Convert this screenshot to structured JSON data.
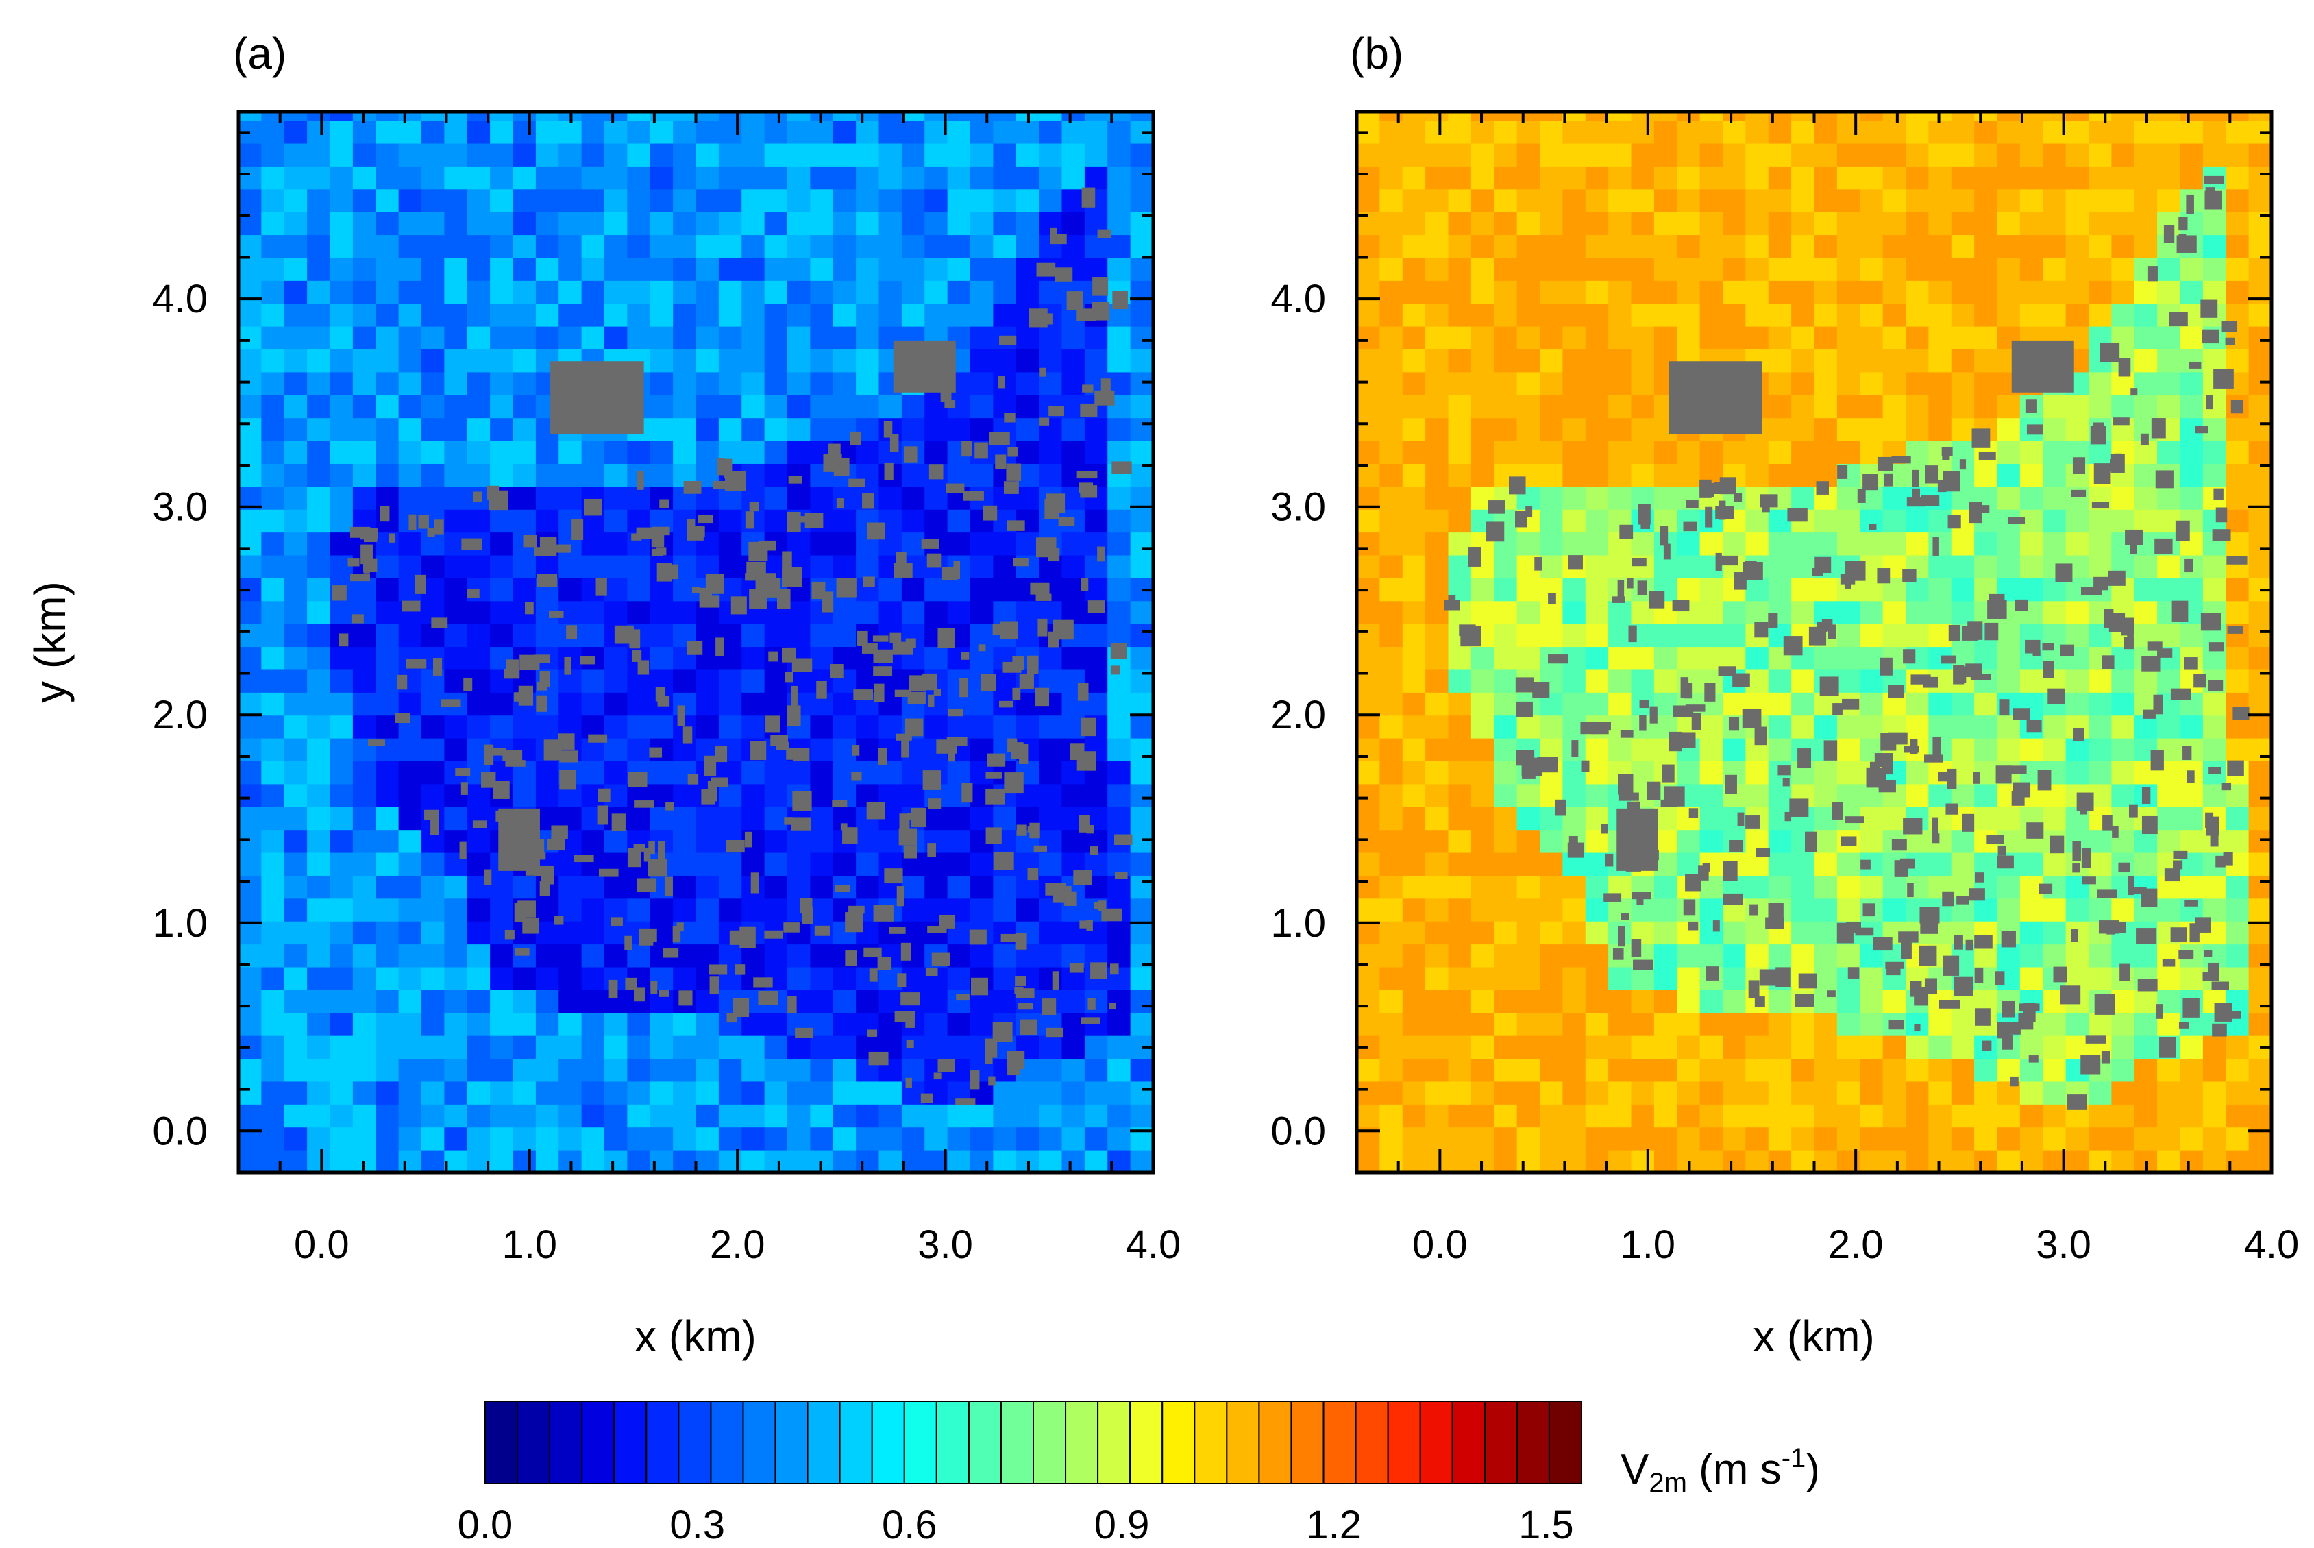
{
  "chart_data": [
    {
      "type": "heatmap",
      "panel_label": "(a)",
      "xlabel": "x (km)",
      "ylabel": "y (km)",
      "xlim": [
        -0.4,
        4.0
      ],
      "ylim": [
        -0.2,
        4.9
      ],
      "xticks": [
        "0.0",
        "1.0",
        "2.0",
        "3.0",
        "4.0"
      ],
      "yticks": [
        "0.0",
        "1.0",
        "2.0",
        "3.0",
        "4.0"
      ],
      "background_range": [
        0.2,
        0.6
      ],
      "urban_range": [
        0.05,
        0.35
      ],
      "building_color": "#6b6b6b"
    },
    {
      "type": "heatmap",
      "panel_label": "(b)",
      "xlabel": "x (km)",
      "ylabel": "",
      "xlim": [
        -0.4,
        4.0
      ],
      "ylim": [
        -0.2,
        4.9
      ],
      "xticks": [
        "0.0",
        "1.0",
        "2.0",
        "3.0",
        "4.0"
      ],
      "yticks": [
        "0.0",
        "1.0",
        "2.0",
        "3.0",
        "4.0"
      ],
      "background_range": [
        1.05,
        1.25
      ],
      "urban_range": [
        0.55,
        1.05
      ],
      "building_color": "#6b6b6b"
    }
  ],
  "colorbar": {
    "title_main": "V",
    "title_sub": "2m",
    "title_unit": " (m s",
    "title_sup": "-1",
    "title_close": ")",
    "range": [
      0.0,
      1.55
    ],
    "step": 0.05,
    "tick_labels": [
      "0.0",
      "0.3",
      "0.6",
      "0.9",
      "1.2",
      "1.5"
    ],
    "tick_values": [
      0.0,
      0.3,
      0.6,
      0.9,
      1.2,
      1.5
    ],
    "colors": [
      "#00008c",
      "#0000a8",
      "#0000c4",
      "#0000e0",
      "#0010f8",
      "#0028ff",
      "#0044ff",
      "#0060ff",
      "#007cff",
      "#0098ff",
      "#00b4ff",
      "#00d0ff",
      "#00ecff",
      "#10ffec",
      "#30ffd0",
      "#50ffb4",
      "#70ff98",
      "#90ff7c",
      "#b0ff60",
      "#d0ff44",
      "#f0ff28",
      "#fff000",
      "#ffd400",
      "#ffb800",
      "#ff9c00",
      "#ff8000",
      "#ff6400",
      "#ff4800",
      "#ff2c00",
      "#f01000",
      "#d00000",
      "#b00000",
      "#900000",
      "#700000"
    ]
  }
}
